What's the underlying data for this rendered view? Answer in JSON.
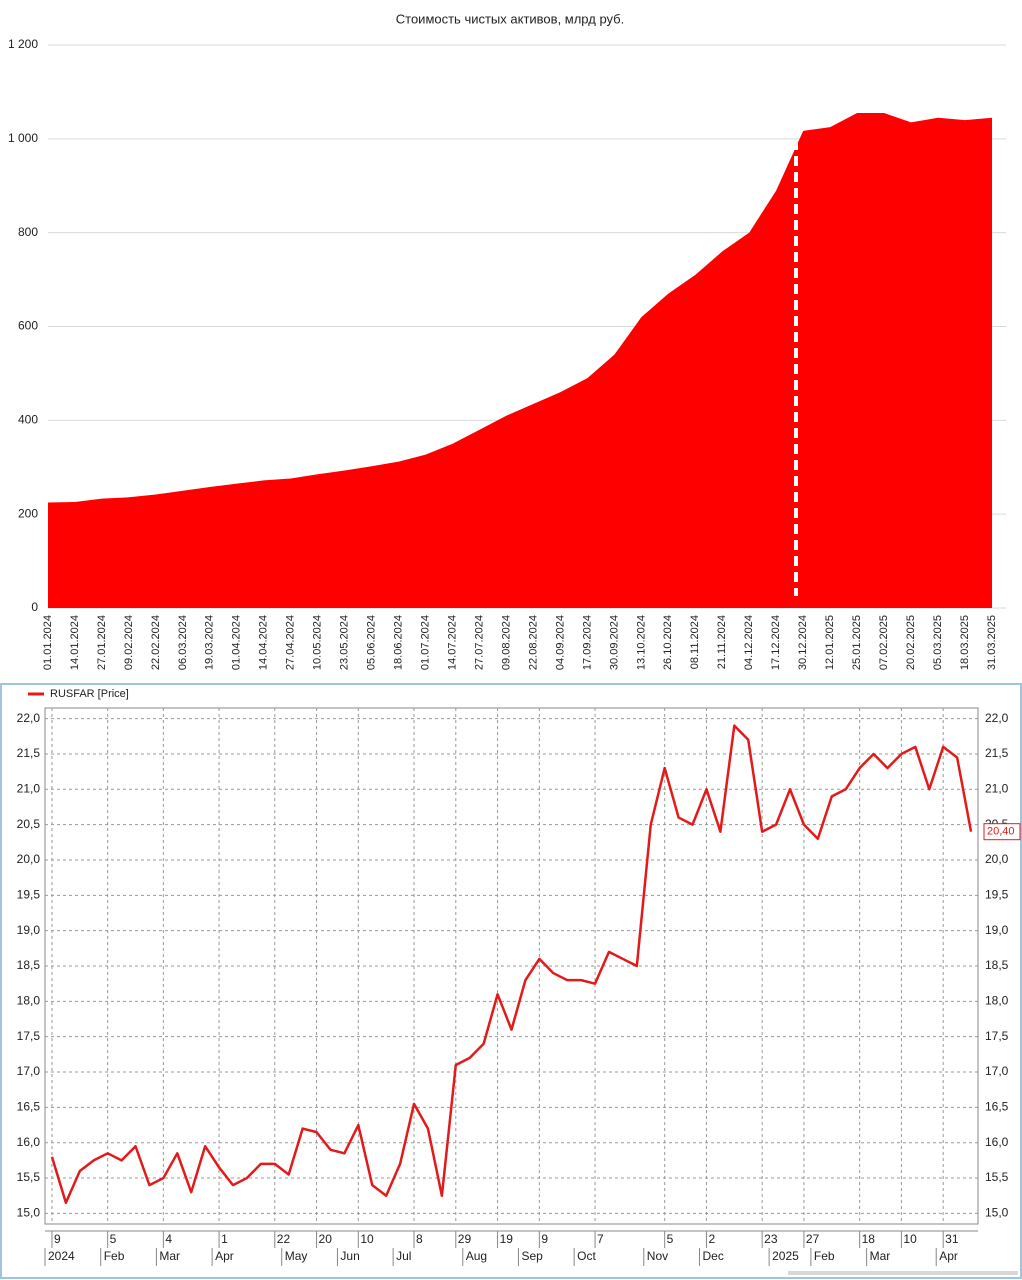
{
  "chart_data": [
    {
      "type": "area",
      "title": "Стоимость чистых активов, млрд руб.",
      "color": "#ff0000",
      "grid": true,
      "categories": [
        "01.01.2024",
        "14.01.2024",
        "27.01.2024",
        "09.02.2024",
        "22.02.2024",
        "06.03.2024",
        "19.03.2024",
        "01.04.2024",
        "14.04.2024",
        "27.04.2024",
        "10.05.2024",
        "23.05.2024",
        "05.06.2024",
        "18.06.2024",
        "01.07.2024",
        "14.07.2024",
        "27.07.2024",
        "09.08.2024",
        "22.08.2024",
        "04.09.2024",
        "17.09.2024",
        "30.09.2024",
        "13.10.2024",
        "26.10.2024",
        "08.11.2024",
        "21.11.2024",
        "04.12.2024",
        "17.12.2024",
        "30.12.2024",
        "12.01.2025",
        "25.01.2025",
        "07.02.2025",
        "20.02.2025",
        "05.03.2025",
        "18.03.2025",
        "31.03.2025"
      ],
      "values": [
        225,
        226,
        233,
        236,
        242,
        250,
        258,
        265,
        272,
        276,
        285,
        293,
        302,
        312,
        327,
        350,
        380,
        410,
        435,
        460,
        490,
        540,
        620,
        670,
        710,
        760,
        800,
        890,
        1017,
        1025,
        1055,
        1055,
        1035,
        1045,
        1040,
        1045
      ],
      "ylim": [
        0,
        1200
      ],
      "yticks": [
        0,
        200,
        400,
        600,
        800,
        {
          "value": 1000,
          "label": "1 000"
        },
        {
          "value": 1200,
          "label": "1 200"
        }
      ]
    },
    {
      "type": "line",
      "grid": true,
      "categories": [
        "9",
        null,
        null,
        null,
        "5",
        null,
        null,
        null,
        "4",
        null,
        null,
        null,
        "1",
        null,
        null,
        null,
        "22",
        null,
        null,
        "20",
        null,
        null,
        "10",
        null,
        null,
        null,
        "8",
        null,
        null,
        "29",
        null,
        null,
        "19",
        null,
        null,
        "9",
        null,
        null,
        null,
        "7",
        null,
        null,
        null,
        null,
        "5",
        null,
        null,
        "2",
        null,
        null,
        null,
        "23",
        null,
        null,
        "27",
        null,
        null,
        null,
        "18",
        null,
        null,
        "10",
        null,
        null,
        "31",
        null,
        null
      ],
      "periods": [
        "2024",
        null,
        null,
        null,
        "Feb",
        null,
        null,
        null,
        "Mar",
        null,
        null,
        null,
        "Apr",
        null,
        null,
        null,
        null,
        "May",
        null,
        null,
        null,
        "Jun",
        null,
        null,
        null,
        "Jul",
        null,
        null,
        null,
        null,
        "Aug",
        null,
        null,
        null,
        "Sep",
        null,
        null,
        null,
        "Oct",
        null,
        null,
        null,
        null,
        "Nov",
        null,
        null,
        null,
        "Dec",
        null,
        null,
        null,
        null,
        "2025",
        null,
        null,
        "Feb",
        null,
        null,
        null,
        "Mar",
        null,
        null,
        null,
        null,
        "Apr",
        null,
        null
      ],
      "series": [
        {
          "name": "RUSFAR [Price]",
          "color": "#e31a1a",
          "values": [
            15.8,
            15.15,
            15.6,
            15.75,
            15.85,
            15.75,
            15.95,
            15.4,
            15.5,
            15.85,
            15.3,
            15.95,
            15.65,
            15.4,
            15.5,
            15.7,
            15.7,
            15.55,
            16.2,
            16.15,
            15.9,
            15.85,
            16.25,
            15.4,
            15.25,
            15.7,
            16.55,
            16.2,
            15.25,
            17.1,
            17.2,
            17.4,
            18.1,
            17.6,
            18.3,
            18.6,
            18.4,
            18.3,
            18.3,
            18.25,
            18.7,
            18.6,
            18.5,
            20.5,
            21.3,
            20.6,
            20.5,
            21.0,
            20.4,
            21.9,
            21.7,
            20.4,
            20.5,
            21.0,
            20.5,
            20.3,
            20.9,
            21.0,
            21.3,
            21.5,
            21.3,
            21.5,
            21.6,
            21.0,
            21.6,
            21.45,
            20.4
          ],
          "value_labels": [
            null,
            null,
            null,
            null,
            null,
            null,
            null,
            null,
            null,
            null,
            null,
            null,
            null,
            null,
            null,
            null,
            null,
            null,
            null,
            null,
            null,
            null,
            null,
            null,
            null,
            null,
            null,
            null,
            null,
            null,
            null,
            null,
            null,
            null,
            null,
            null,
            null,
            null,
            null,
            null,
            null,
            null,
            null,
            null,
            null,
            null,
            null,
            null,
            null,
            null,
            null,
            null,
            null,
            null,
            null,
            null,
            null,
            null,
            null,
            null,
            null,
            null,
            null,
            null,
            null,
            null,
            "20,40"
          ]
        }
      ],
      "ylim": [
        14.85,
        22.15
      ],
      "yticks": [
        {
          "value": 15,
          "label": "15,0"
        },
        {
          "value": 15.5,
          "label": "15,5"
        },
        {
          "value": 16,
          "label": "16,0"
        },
        {
          "value": 16.5,
          "label": "16,5"
        },
        {
          "value": 17,
          "label": "17,0"
        },
        {
          "value": 17.5,
          "label": "17,5"
        },
        {
          "value": 18,
          "label": "18,0"
        },
        {
          "value": 18.5,
          "label": "18,5"
        },
        {
          "value": 19,
          "label": "19,0"
        },
        {
          "value": 19.5,
          "label": "19,5"
        },
        {
          "value": 20,
          "label": "20,0"
        },
        {
          "value": 20.5,
          "label": "20,5"
        },
        {
          "value": 21,
          "label": "21,0"
        },
        {
          "value": 21.5,
          "label": "21,5"
        },
        {
          "value": 22,
          "label": "22,0"
        }
      ]
    }
  ]
}
